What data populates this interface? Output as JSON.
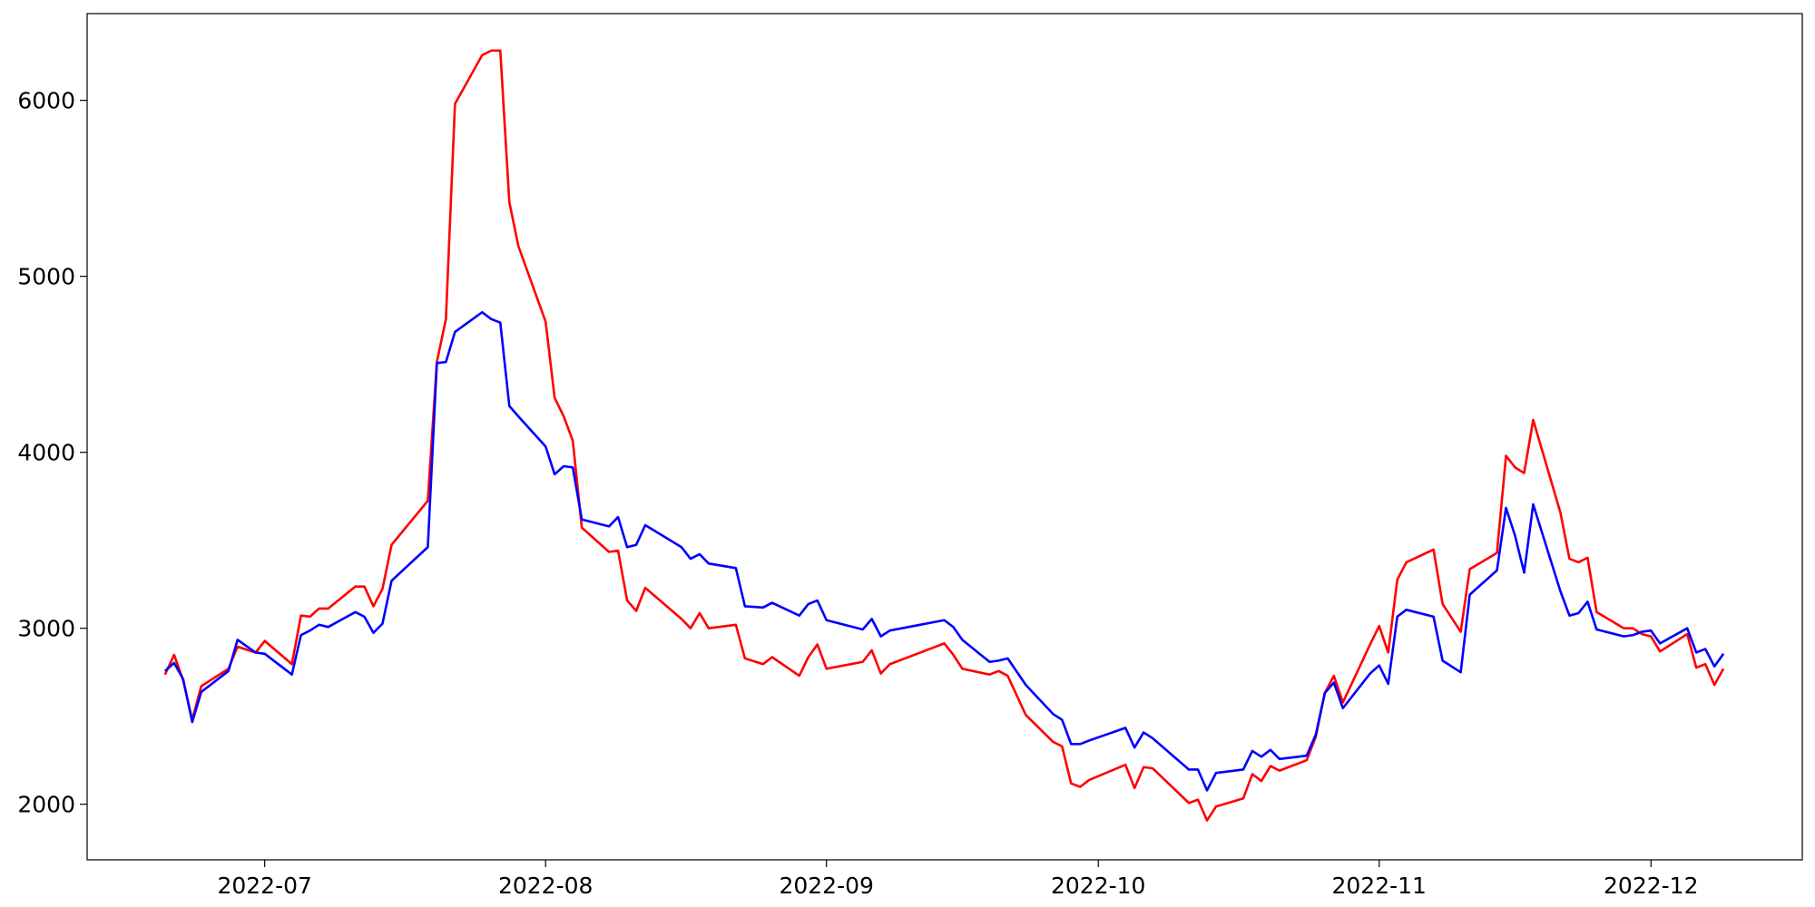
{
  "chart_data": {
    "type": "line",
    "x": [
      171,
      172,
      173,
      174,
      175,
      178,
      179,
      181,
      182,
      185,
      186,
      187,
      188,
      189,
      192,
      193,
      194,
      195,
      196,
      200,
      201,
      202,
      203,
      206,
      207,
      208,
      209,
      210,
      213,
      214,
      215,
      216,
      217,
      220,
      221,
      222,
      223,
      224,
      228,
      229,
      230,
      231,
      234,
      235,
      237,
      238,
      241,
      242,
      243,
      244,
      248,
      249,
      250,
      251,
      257,
      258,
      259,
      262,
      263,
      264,
      266,
      269,
      270,
      271,
      272,
      273,
      277,
      278,
      279,
      280,
      284,
      285,
      286,
      287,
      290,
      291,
      292,
      293,
      294,
      297,
      298,
      299,
      300,
      301,
      304,
      305,
      306,
      307,
      308,
      311,
      312,
      314,
      315,
      318,
      319,
      320,
      321,
      322,
      325,
      326,
      327,
      328,
      329,
      332,
      333,
      334,
      335,
      336,
      339,
      340,
      341,
      342,
      343
    ],
    "series": [
      {
        "color": "#ff0000",
        "values": [
          2737,
          2849,
          2704,
          2480,
          2671,
          2770,
          2895,
          2862,
          2928,
          2796,
          3072,
          3066,
          3112,
          3112,
          3237,
          3237,
          3125,
          3224,
          3474,
          3724,
          4513,
          4757,
          5980,
          6257,
          6283,
          6283,
          5421,
          5171,
          4743,
          4309,
          4204,
          4066,
          3572,
          3434,
          3441,
          3158,
          3099,
          3230,
          3053,
          3000,
          3086,
          3000,
          3020,
          2829,
          2796,
          2836,
          2730,
          2836,
          2908,
          2770,
          2809,
          2875,
          2743,
          2796,
          2914,
          2849,
          2770,
          2737,
          2757,
          2730,
          2507,
          2355,
          2329,
          2118,
          2099,
          2138,
          2224,
          2092,
          2211,
          2204,
          2007,
          2026,
          1908,
          1987,
          2033,
          2171,
          2132,
          2217,
          2191,
          2250,
          2382,
          2632,
          2730,
          2579,
          2908,
          3013,
          2862,
          3276,
          3375,
          3447,
          3138,
          2980,
          3336,
          3428,
          3980,
          3914,
          3882,
          4184,
          3658,
          3395,
          3375,
          3401,
          3092,
          3000,
          3000,
          2967,
          2954,
          2868,
          2967,
          2776,
          2796,
          2678,
          2770
        ]
      },
      {
        "color": "#0000ff",
        "values": [
          2757,
          2803,
          2711,
          2467,
          2638,
          2757,
          2934,
          2862,
          2855,
          2737,
          2961,
          2987,
          3020,
          3007,
          3092,
          3066,
          2974,
          3026,
          3270,
          3461,
          4507,
          4513,
          4684,
          4796,
          4757,
          4737,
          4263,
          4204,
          4033,
          3875,
          3921,
          3914,
          3618,
          3579,
          3632,
          3461,
          3474,
          3586,
          3461,
          3395,
          3421,
          3368,
          3342,
          3125,
          3118,
          3145,
          3072,
          3138,
          3158,
          3046,
          2993,
          3053,
          2954,
          2987,
          3046,
          3007,
          2934,
          2809,
          2816,
          2829,
          2678,
          2513,
          2480,
          2342,
          2342,
          2362,
          2434,
          2322,
          2408,
          2375,
          2197,
          2197,
          2079,
          2178,
          2197,
          2303,
          2270,
          2309,
          2257,
          2276,
          2395,
          2632,
          2691,
          2546,
          2743,
          2789,
          2684,
          3066,
          3105,
          3066,
          2816,
          2750,
          3191,
          3329,
          3684,
          3526,
          3316,
          3704,
          3211,
          3072,
          3086,
          3151,
          2993,
          2954,
          2961,
          2980,
          2987,
          2914,
          3000,
          2862,
          2882,
          2783,
          2855
        ]
      }
    ],
    "xlim": [
      162.4,
      351.7
    ],
    "xticks": [
      {
        "value": 182,
        "label": "2022-07"
      },
      {
        "value": 213,
        "label": "2022-08"
      },
      {
        "value": 244,
        "label": "2022-09"
      },
      {
        "value": 274,
        "label": "2022-10"
      },
      {
        "value": 305,
        "label": "2022-11"
      },
      {
        "value": 335,
        "label": "2022-12"
      }
    ],
    "ylim": [
      1684,
      6493
    ],
    "yticks": [
      2000,
      3000,
      4000,
      5000,
      6000
    ],
    "grid": false
  }
}
